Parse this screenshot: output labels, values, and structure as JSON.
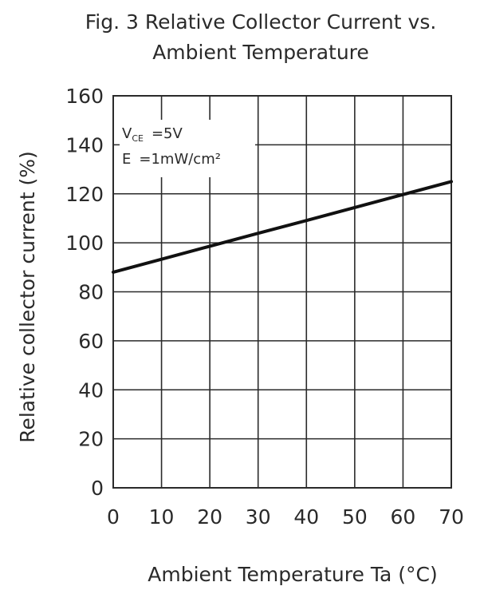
{
  "chart_data": {
    "type": "line",
    "title_line1": "Fig. 3 Relative Collector Current vs.",
    "title_line2": "Ambient Temperature",
    "xlabel": "Ambient Temperature Ta (°C)",
    "ylabel": "Relative collector current (%)",
    "xlim": [
      0,
      70
    ],
    "ylim": [
      0,
      160
    ],
    "xticks": [
      0,
      10,
      20,
      30,
      40,
      50,
      60,
      70
    ],
    "yticks": [
      0,
      20,
      40,
      60,
      80,
      100,
      120,
      140,
      160
    ],
    "grid": true,
    "annotations": {
      "vce_prefix": "V",
      "vce_sub": "CE",
      "vce_value": "=5V",
      "e_prefix": "E",
      "e_value": "=1mW/cm²"
    },
    "series": [
      {
        "x": [
          0,
          10,
          20,
          30,
          40,
          50,
          60,
          70
        ],
        "y": [
          88,
          93.3,
          98.6,
          103.9,
          109.1,
          114.4,
          119.7,
          125
        ]
      }
    ]
  }
}
